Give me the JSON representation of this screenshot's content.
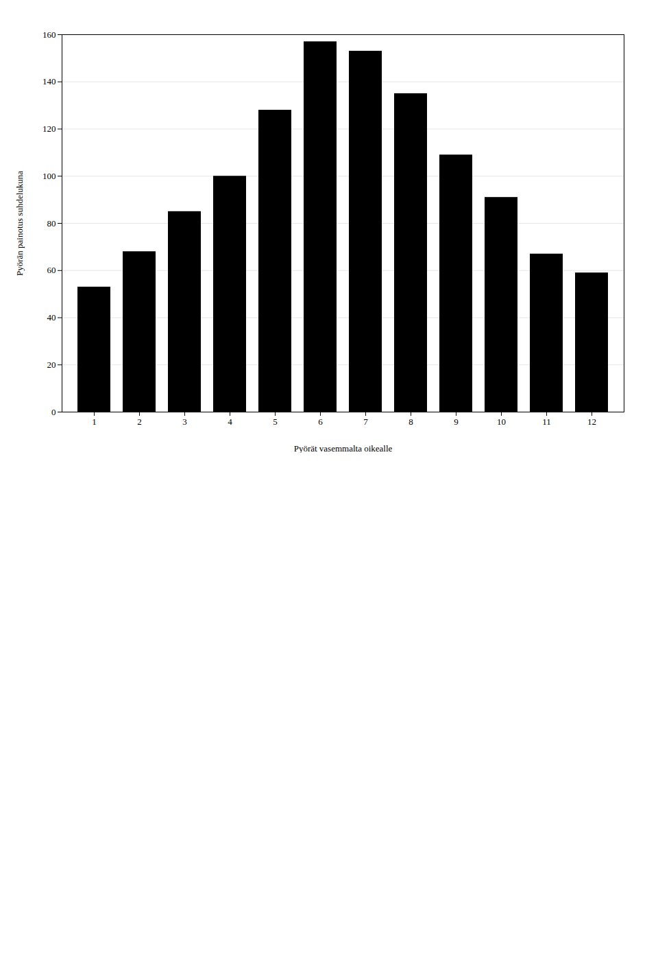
{
  "chart_data": {
    "type": "bar",
    "categories": [
      "1",
      "2",
      "3",
      "4",
      "5",
      "6",
      "7",
      "8",
      "9",
      "10",
      "11",
      "12"
    ],
    "values": [
      53,
      68,
      85,
      100,
      128,
      157,
      153,
      135,
      109,
      91,
      67,
      59
    ],
    "xlabel": "Pyörät vasemmalta oikealle",
    "ylabel": "Pyörän painotus suhdelukuna",
    "ylim": [
      0,
      160
    ],
    "yticks": [
      0,
      20,
      40,
      60,
      80,
      100,
      120,
      140,
      160
    ],
    "grid": true
  }
}
